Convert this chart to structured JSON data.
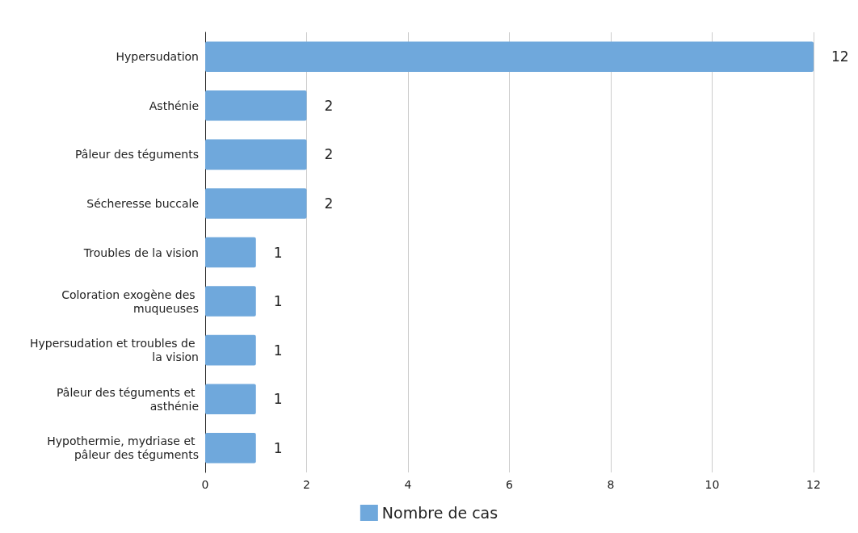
{
  "chart_data": {
    "type": "bar",
    "orientation": "horizontal",
    "categories": [
      "Hypersudation",
      "Asthénie",
      "Pâleur des téguments",
      "Sécheresse buccale",
      "Troubles de la vision",
      "Coloration exogène des muqueuses",
      "Hypersudation et troubles de la vision",
      "Pâleur des téguments et asthénie",
      "Hypothermie, mydriase et pâleur des téguments"
    ],
    "series": [
      {
        "name": "Nombre de cas",
        "color": "#6fa8dc",
        "values": [
          12,
          2,
          2,
          2,
          1,
          1,
          1,
          1,
          1
        ]
      }
    ],
    "xlim": [
      0,
      12
    ],
    "xticks": [
      0,
      2,
      4,
      6,
      8,
      10,
      12
    ],
    "grid": "x",
    "legend": "bottom",
    "data_labels": true
  }
}
